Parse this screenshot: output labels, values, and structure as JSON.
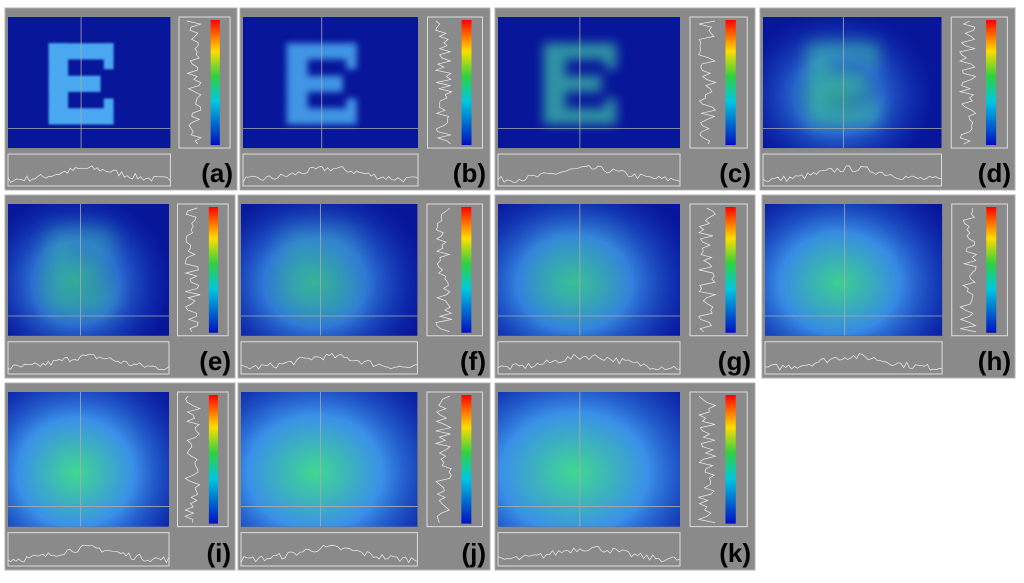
{
  "panels": [
    {
      "label": "(a)"
    },
    {
      "label": "(b)"
    },
    {
      "label": "(c)"
    },
    {
      "label": "(d)"
    },
    {
      "label": "(e)"
    },
    {
      "label": "(f)"
    },
    {
      "label": "(g)"
    },
    {
      "label": "(h)"
    },
    {
      "label": "(i)"
    },
    {
      "label": "(j)"
    },
    {
      "label": "(k)"
    }
  ]
}
